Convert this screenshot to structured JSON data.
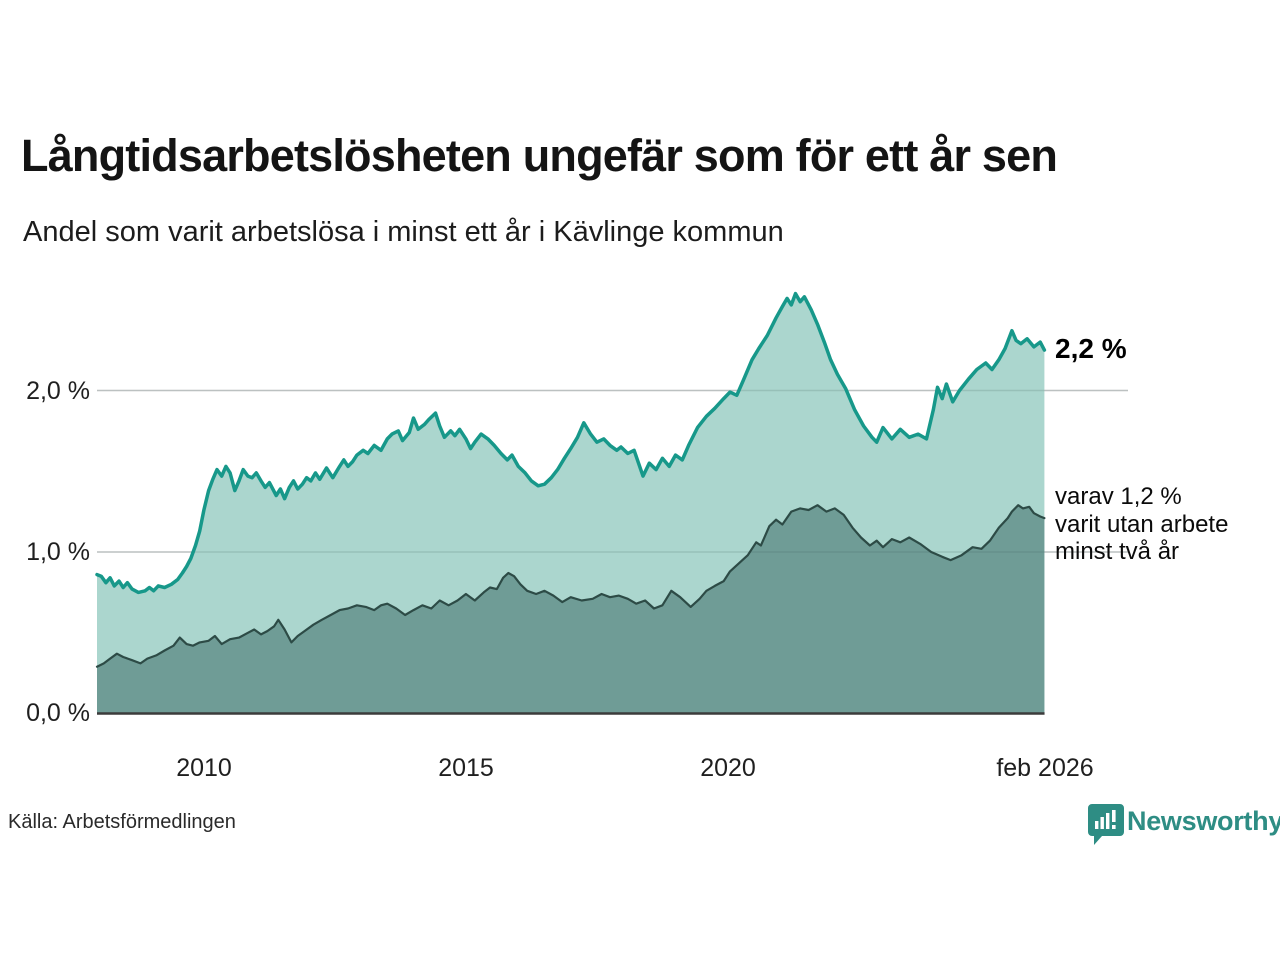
{
  "header": {
    "title": "Långtidsarbetslösheten ungefär som för ett år sen",
    "subtitle": "Andel som varit arbetslösa i minst ett år i Kävlinge kommun"
  },
  "axes": {
    "y_ticks": [
      "2,0 %",
      "1,0 %",
      "0,0 %"
    ],
    "x_ticks": [
      "2010",
      "2015",
      "2020",
      "feb 2026"
    ]
  },
  "annotations": {
    "latest_total_label": "2,2 %",
    "secondary_lines": [
      "varav 1,2 %",
      "varit utan arbete",
      "minst två år"
    ]
  },
  "footer": {
    "source": "Källa: Arbetsförmedlingen",
    "brand": "Newsworthy"
  },
  "colors": {
    "series1_line": "#17988a",
    "series1_fill": "#abd6ce",
    "series2_line": "#2d4b46",
    "series2_fill": "#6f9c96",
    "gridline": "#d8d8d8",
    "baseline": "#3b3b3b",
    "brand_teal": "#2e8d84"
  },
  "chart_data": {
    "type": "area",
    "title": "Långtidsarbetslösheten ungefär som för ett år sen",
    "subtitle": "Andel som varit arbetslösa i minst ett år i Kävlinge kommun",
    "unit": "%",
    "x_range": [
      2008.0,
      2026.083
    ],
    "ylim": [
      0,
      2.7
    ],
    "y_gridlines": [
      1.0,
      2.0
    ],
    "x_tick_years": [
      2010,
      2015,
      2020,
      2026.083
    ],
    "grid": true,
    "legend_position": "right-annotations",
    "latest": {
      "total_pct": 2.2,
      "two_year_pct": 1.2,
      "period": "feb 2026"
    },
    "series": [
      {
        "name": "Andel arbetslösa minst ett år",
        "points": [
          [
            2008.0,
            0.86
          ],
          [
            2008.08,
            0.85
          ],
          [
            2008.17,
            0.81
          ],
          [
            2008.25,
            0.84
          ],
          [
            2008.33,
            0.79
          ],
          [
            2008.42,
            0.82
          ],
          [
            2008.5,
            0.78
          ],
          [
            2008.58,
            0.81
          ],
          [
            2008.67,
            0.77
          ],
          [
            2008.79,
            0.75
          ],
          [
            2008.92,
            0.76
          ],
          [
            2009.0,
            0.78
          ],
          [
            2009.08,
            0.76
          ],
          [
            2009.17,
            0.79
          ],
          [
            2009.29,
            0.78
          ],
          [
            2009.42,
            0.8
          ],
          [
            2009.54,
            0.83
          ],
          [
            2009.63,
            0.87
          ],
          [
            2009.71,
            0.91
          ],
          [
            2009.79,
            0.96
          ],
          [
            2009.88,
            1.04
          ],
          [
            2009.96,
            1.13
          ],
          [
            2010.04,
            1.26
          ],
          [
            2010.13,
            1.38
          ],
          [
            2010.21,
            1.45
          ],
          [
            2010.29,
            1.51
          ],
          [
            2010.38,
            1.47
          ],
          [
            2010.46,
            1.53
          ],
          [
            2010.54,
            1.49
          ],
          [
            2010.63,
            1.38
          ],
          [
            2010.71,
            1.44
          ],
          [
            2010.79,
            1.51
          ],
          [
            2010.88,
            1.47
          ],
          [
            2010.96,
            1.46
          ],
          [
            2011.04,
            1.49
          ],
          [
            2011.13,
            1.44
          ],
          [
            2011.21,
            1.4
          ],
          [
            2011.29,
            1.43
          ],
          [
            2011.42,
            1.35
          ],
          [
            2011.5,
            1.39
          ],
          [
            2011.58,
            1.33
          ],
          [
            2011.67,
            1.4
          ],
          [
            2011.75,
            1.44
          ],
          [
            2011.83,
            1.39
          ],
          [
            2011.92,
            1.42
          ],
          [
            2012.0,
            1.46
          ],
          [
            2012.08,
            1.44
          ],
          [
            2012.17,
            1.49
          ],
          [
            2012.25,
            1.45
          ],
          [
            2012.38,
            1.52
          ],
          [
            2012.5,
            1.46
          ],
          [
            2012.63,
            1.53
          ],
          [
            2012.71,
            1.57
          ],
          [
            2012.79,
            1.53
          ],
          [
            2012.88,
            1.56
          ],
          [
            2012.96,
            1.6
          ],
          [
            2013.08,
            1.63
          ],
          [
            2013.17,
            1.61
          ],
          [
            2013.29,
            1.66
          ],
          [
            2013.42,
            1.63
          ],
          [
            2013.54,
            1.7
          ],
          [
            2013.63,
            1.73
          ],
          [
            2013.75,
            1.75
          ],
          [
            2013.83,
            1.69
          ],
          [
            2013.96,
            1.74
          ],
          [
            2014.04,
            1.83
          ],
          [
            2014.13,
            1.76
          ],
          [
            2014.25,
            1.79
          ],
          [
            2014.33,
            1.82
          ],
          [
            2014.46,
            1.86
          ],
          [
            2014.54,
            1.78
          ],
          [
            2014.63,
            1.71
          ],
          [
            2014.75,
            1.75
          ],
          [
            2014.83,
            1.72
          ],
          [
            2014.92,
            1.76
          ],
          [
            2015.04,
            1.7
          ],
          [
            2015.13,
            1.64
          ],
          [
            2015.21,
            1.68
          ],
          [
            2015.33,
            1.73
          ],
          [
            2015.46,
            1.7
          ],
          [
            2015.58,
            1.66
          ],
          [
            2015.71,
            1.61
          ],
          [
            2015.83,
            1.57
          ],
          [
            2015.92,
            1.6
          ],
          [
            2016.04,
            1.53
          ],
          [
            2016.17,
            1.49
          ],
          [
            2016.29,
            1.44
          ],
          [
            2016.42,
            1.41
          ],
          [
            2016.54,
            1.42
          ],
          [
            2016.67,
            1.46
          ],
          [
            2016.79,
            1.51
          ],
          [
            2016.92,
            1.58
          ],
          [
            2017.04,
            1.64
          ],
          [
            2017.17,
            1.71
          ],
          [
            2017.29,
            1.8
          ],
          [
            2017.42,
            1.73
          ],
          [
            2017.54,
            1.68
          ],
          [
            2017.67,
            1.7
          ],
          [
            2017.79,
            1.66
          ],
          [
            2017.92,
            1.63
          ],
          [
            2018.0,
            1.65
          ],
          [
            2018.13,
            1.61
          ],
          [
            2018.25,
            1.63
          ],
          [
            2018.42,
            1.47
          ],
          [
            2018.54,
            1.55
          ],
          [
            2018.67,
            1.51
          ],
          [
            2018.79,
            1.58
          ],
          [
            2018.92,
            1.53
          ],
          [
            2019.04,
            1.6
          ],
          [
            2019.17,
            1.57
          ],
          [
            2019.29,
            1.66
          ],
          [
            2019.46,
            1.77
          ],
          [
            2019.63,
            1.84
          ],
          [
            2019.79,
            1.89
          ],
          [
            2019.96,
            1.95
          ],
          [
            2020.08,
            1.99
          ],
          [
            2020.21,
            1.97
          ],
          [
            2020.33,
            2.06
          ],
          [
            2020.5,
            2.19
          ],
          [
            2020.63,
            2.26
          ],
          [
            2020.79,
            2.34
          ],
          [
            2020.96,
            2.45
          ],
          [
            2021.08,
            2.52
          ],
          [
            2021.17,
            2.57
          ],
          [
            2021.25,
            2.53
          ],
          [
            2021.33,
            2.6
          ],
          [
            2021.42,
            2.55
          ],
          [
            2021.5,
            2.58
          ],
          [
            2021.63,
            2.5
          ],
          [
            2021.75,
            2.41
          ],
          [
            2021.88,
            2.3
          ],
          [
            2022.0,
            2.19
          ],
          [
            2022.13,
            2.1
          ],
          [
            2022.29,
            2.01
          ],
          [
            2022.46,
            1.88
          ],
          [
            2022.63,
            1.78
          ],
          [
            2022.79,
            1.71
          ],
          [
            2022.88,
            1.68
          ],
          [
            2023.0,
            1.77
          ],
          [
            2023.17,
            1.7
          ],
          [
            2023.33,
            1.76
          ],
          [
            2023.5,
            1.71
          ],
          [
            2023.67,
            1.73
          ],
          [
            2023.83,
            1.7
          ],
          [
            2023.96,
            1.88
          ],
          [
            2024.04,
            2.02
          ],
          [
            2024.13,
            1.95
          ],
          [
            2024.21,
            2.04
          ],
          [
            2024.33,
            1.93
          ],
          [
            2024.46,
            2.0
          ],
          [
            2024.63,
            2.07
          ],
          [
            2024.79,
            2.13
          ],
          [
            2024.96,
            2.17
          ],
          [
            2025.08,
            2.13
          ],
          [
            2025.21,
            2.19
          ],
          [
            2025.33,
            2.26
          ],
          [
            2025.46,
            2.37
          ],
          [
            2025.54,
            2.31
          ],
          [
            2025.63,
            2.29
          ],
          [
            2025.75,
            2.32
          ],
          [
            2025.88,
            2.27
          ],
          [
            2026.0,
            2.3
          ],
          [
            2026.08,
            2.25
          ]
        ]
      },
      {
        "name": "varav utan arbete minst två år",
        "points": [
          [
            2008.0,
            0.29
          ],
          [
            2008.13,
            0.31
          ],
          [
            2008.25,
            0.34
          ],
          [
            2008.38,
            0.37
          ],
          [
            2008.5,
            0.35
          ],
          [
            2008.67,
            0.33
          ],
          [
            2008.83,
            0.31
          ],
          [
            2008.96,
            0.34
          ],
          [
            2009.13,
            0.36
          ],
          [
            2009.29,
            0.39
          ],
          [
            2009.46,
            0.42
          ],
          [
            2009.58,
            0.47
          ],
          [
            2009.71,
            0.43
          ],
          [
            2009.83,
            0.42
          ],
          [
            2009.96,
            0.44
          ],
          [
            2010.13,
            0.45
          ],
          [
            2010.25,
            0.48
          ],
          [
            2010.38,
            0.43
          ],
          [
            2010.54,
            0.46
          ],
          [
            2010.71,
            0.47
          ],
          [
            2010.88,
            0.5
          ],
          [
            2011.0,
            0.52
          ],
          [
            2011.13,
            0.49
          ],
          [
            2011.25,
            0.51
          ],
          [
            2011.38,
            0.54
          ],
          [
            2011.46,
            0.58
          ],
          [
            2011.58,
            0.52
          ],
          [
            2011.71,
            0.44
          ],
          [
            2011.83,
            0.48
          ],
          [
            2011.96,
            0.51
          ],
          [
            2012.13,
            0.55
          ],
          [
            2012.29,
            0.58
          ],
          [
            2012.46,
            0.61
          ],
          [
            2012.63,
            0.64
          ],
          [
            2012.79,
            0.65
          ],
          [
            2012.96,
            0.67
          ],
          [
            2013.13,
            0.66
          ],
          [
            2013.29,
            0.64
          ],
          [
            2013.42,
            0.67
          ],
          [
            2013.54,
            0.68
          ],
          [
            2013.71,
            0.65
          ],
          [
            2013.88,
            0.61
          ],
          [
            2014.04,
            0.64
          ],
          [
            2014.21,
            0.67
          ],
          [
            2014.38,
            0.65
          ],
          [
            2014.54,
            0.7
          ],
          [
            2014.71,
            0.67
          ],
          [
            2014.88,
            0.7
          ],
          [
            2015.04,
            0.74
          ],
          [
            2015.21,
            0.7
          ],
          [
            2015.38,
            0.75
          ],
          [
            2015.5,
            0.78
          ],
          [
            2015.63,
            0.77
          ],
          [
            2015.75,
            0.84
          ],
          [
            2015.85,
            0.87
          ],
          [
            2015.96,
            0.85
          ],
          [
            2016.08,
            0.8
          ],
          [
            2016.21,
            0.76
          ],
          [
            2016.38,
            0.74
          ],
          [
            2016.54,
            0.76
          ],
          [
            2016.71,
            0.73
          ],
          [
            2016.88,
            0.69
          ],
          [
            2017.04,
            0.72
          ],
          [
            2017.25,
            0.7
          ],
          [
            2017.46,
            0.71
          ],
          [
            2017.63,
            0.74
          ],
          [
            2017.79,
            0.72
          ],
          [
            2017.96,
            0.73
          ],
          [
            2018.13,
            0.71
          ],
          [
            2018.29,
            0.68
          ],
          [
            2018.46,
            0.7
          ],
          [
            2018.63,
            0.65
          ],
          [
            2018.79,
            0.67
          ],
          [
            2018.96,
            0.76
          ],
          [
            2019.13,
            0.72
          ],
          [
            2019.33,
            0.66
          ],
          [
            2019.5,
            0.71
          ],
          [
            2019.63,
            0.76
          ],
          [
            2019.79,
            0.79
          ],
          [
            2019.96,
            0.82
          ],
          [
            2020.08,
            0.88
          ],
          [
            2020.25,
            0.93
          ],
          [
            2020.42,
            0.98
          ],
          [
            2020.58,
            1.06
          ],
          [
            2020.67,
            1.04
          ],
          [
            2020.83,
            1.16
          ],
          [
            2020.96,
            1.2
          ],
          [
            2021.08,
            1.17
          ],
          [
            2021.25,
            1.25
          ],
          [
            2021.42,
            1.27
          ],
          [
            2021.58,
            1.26
          ],
          [
            2021.75,
            1.29
          ],
          [
            2021.92,
            1.25
          ],
          [
            2022.08,
            1.27
          ],
          [
            2022.25,
            1.23
          ],
          [
            2022.42,
            1.15
          ],
          [
            2022.58,
            1.09
          ],
          [
            2022.75,
            1.04
          ],
          [
            2022.88,
            1.07
          ],
          [
            2023.0,
            1.03
          ],
          [
            2023.17,
            1.08
          ],
          [
            2023.33,
            1.06
          ],
          [
            2023.5,
            1.09
          ],
          [
            2023.71,
            1.05
          ],
          [
            2023.92,
            1.0
          ],
          [
            2024.13,
            0.97
          ],
          [
            2024.29,
            0.95
          ],
          [
            2024.5,
            0.98
          ],
          [
            2024.71,
            1.03
          ],
          [
            2024.88,
            1.02
          ],
          [
            2025.04,
            1.07
          ],
          [
            2025.21,
            1.15
          ],
          [
            2025.38,
            1.21
          ],
          [
            2025.46,
            1.25
          ],
          [
            2025.58,
            1.29
          ],
          [
            2025.67,
            1.27
          ],
          [
            2025.79,
            1.28
          ],
          [
            2025.88,
            1.24
          ],
          [
            2026.0,
            1.22
          ],
          [
            2026.08,
            1.21
          ]
        ]
      }
    ]
  }
}
